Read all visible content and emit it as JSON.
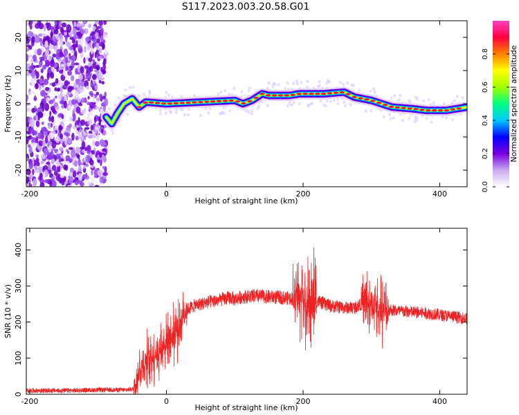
{
  "figure_title": "S117.2023.003.20.58.G01",
  "chart_data": [
    {
      "type": "heatmap",
      "title": "",
      "xlabel": "Height of straight line (km)",
      "ylabel": "Frequency (Hz)",
      "xlim": [
        -205,
        440
      ],
      "ylim": [
        -25,
        25
      ],
      "x_ticks": [
        -200,
        0,
        200,
        400
      ],
      "y_ticks": [
        -20,
        -10,
        0,
        10,
        20
      ],
      "colorbar": {
        "label": "Normalized spectral amplitude",
        "range": [
          0,
          1
        ],
        "ticks": [
          "0.0",
          "0.2",
          "0.4",
          "0.6",
          "0.8"
        ],
        "colors": [
          "#ffffff",
          "#c8a8f0",
          "#7b00e0",
          "#0000ff",
          "#00c8ff",
          "#00ff80",
          "#a0ff00",
          "#ffff00",
          "#ff8000",
          "#ff0040",
          "#ff40c0"
        ]
      },
      "noise_region_x": [
        -205,
        -88
      ],
      "ridge": [
        {
          "x": -88,
          "y": -4
        },
        {
          "x": -80,
          "y": -6
        },
        {
          "x": -72,
          "y": -3
        },
        {
          "x": -62,
          "y": 0
        },
        {
          "x": -50,
          "y": 1.5
        },
        {
          "x": -40,
          "y": -1
        },
        {
          "x": -30,
          "y": 0.5
        },
        {
          "x": 0,
          "y": 0
        },
        {
          "x": 50,
          "y": 0.5
        },
        {
          "x": 100,
          "y": 1
        },
        {
          "x": 112,
          "y": 0
        },
        {
          "x": 125,
          "y": 1
        },
        {
          "x": 140,
          "y": 3
        },
        {
          "x": 150,
          "y": 2.5
        },
        {
          "x": 180,
          "y": 2.5
        },
        {
          "x": 195,
          "y": 3
        },
        {
          "x": 230,
          "y": 3
        },
        {
          "x": 260,
          "y": 3.5
        },
        {
          "x": 275,
          "y": 2
        },
        {
          "x": 300,
          "y": 1
        },
        {
          "x": 330,
          "y": -1
        },
        {
          "x": 360,
          "y": -1.5
        },
        {
          "x": 380,
          "y": -2
        },
        {
          "x": 410,
          "y": -2
        },
        {
          "x": 440,
          "y": -1
        }
      ]
    },
    {
      "type": "line",
      "title": "",
      "xlabel": "Height of straight line (km)",
      "ylabel": "SNR (10 * v/v)",
      "xlim": [
        -205,
        440
      ],
      "ylim": [
        0,
        460
      ],
      "x_ticks": [
        -200,
        0,
        200,
        400
      ],
      "y_ticks": [
        0,
        100,
        200,
        300,
        400
      ],
      "color": "#ee2222",
      "series": [
        {
          "x": [
            -205,
            -150,
            -100,
            -60,
            -48,
            -40,
            -30,
            -20,
            -10,
            0,
            10,
            20,
            25,
            40,
            60,
            80,
            95,
            100,
            110,
            130,
            150,
            170,
            185,
            195,
            200,
            205,
            210,
            215,
            225,
            240,
            260,
            275,
            285,
            295,
            300,
            305,
            310,
            315,
            320,
            325,
            340,
            380,
            420,
            440
          ],
          "y": [
            10,
            10,
            12,
            12,
            15,
            60,
            90,
            105,
            120,
            150,
            165,
            190,
            230,
            245,
            255,
            262,
            268,
            262,
            270,
            272,
            270,
            268,
            265,
            275,
            280,
            220,
            250,
            265,
            255,
            245,
            240,
            240,
            250,
            255,
            240,
            260,
            230,
            240,
            230,
            235,
            230,
            225,
            215,
            210
          ]
        }
      ],
      "spikes": [
        {
          "x_range": [
            -48,
            30
          ],
          "amplitude": 90
        },
        {
          "x_range": [
            185,
            220
          ],
          "amplitude": 160
        },
        {
          "x_range": [
            285,
            325
          ],
          "amplitude": 100
        }
      ]
    }
  ]
}
